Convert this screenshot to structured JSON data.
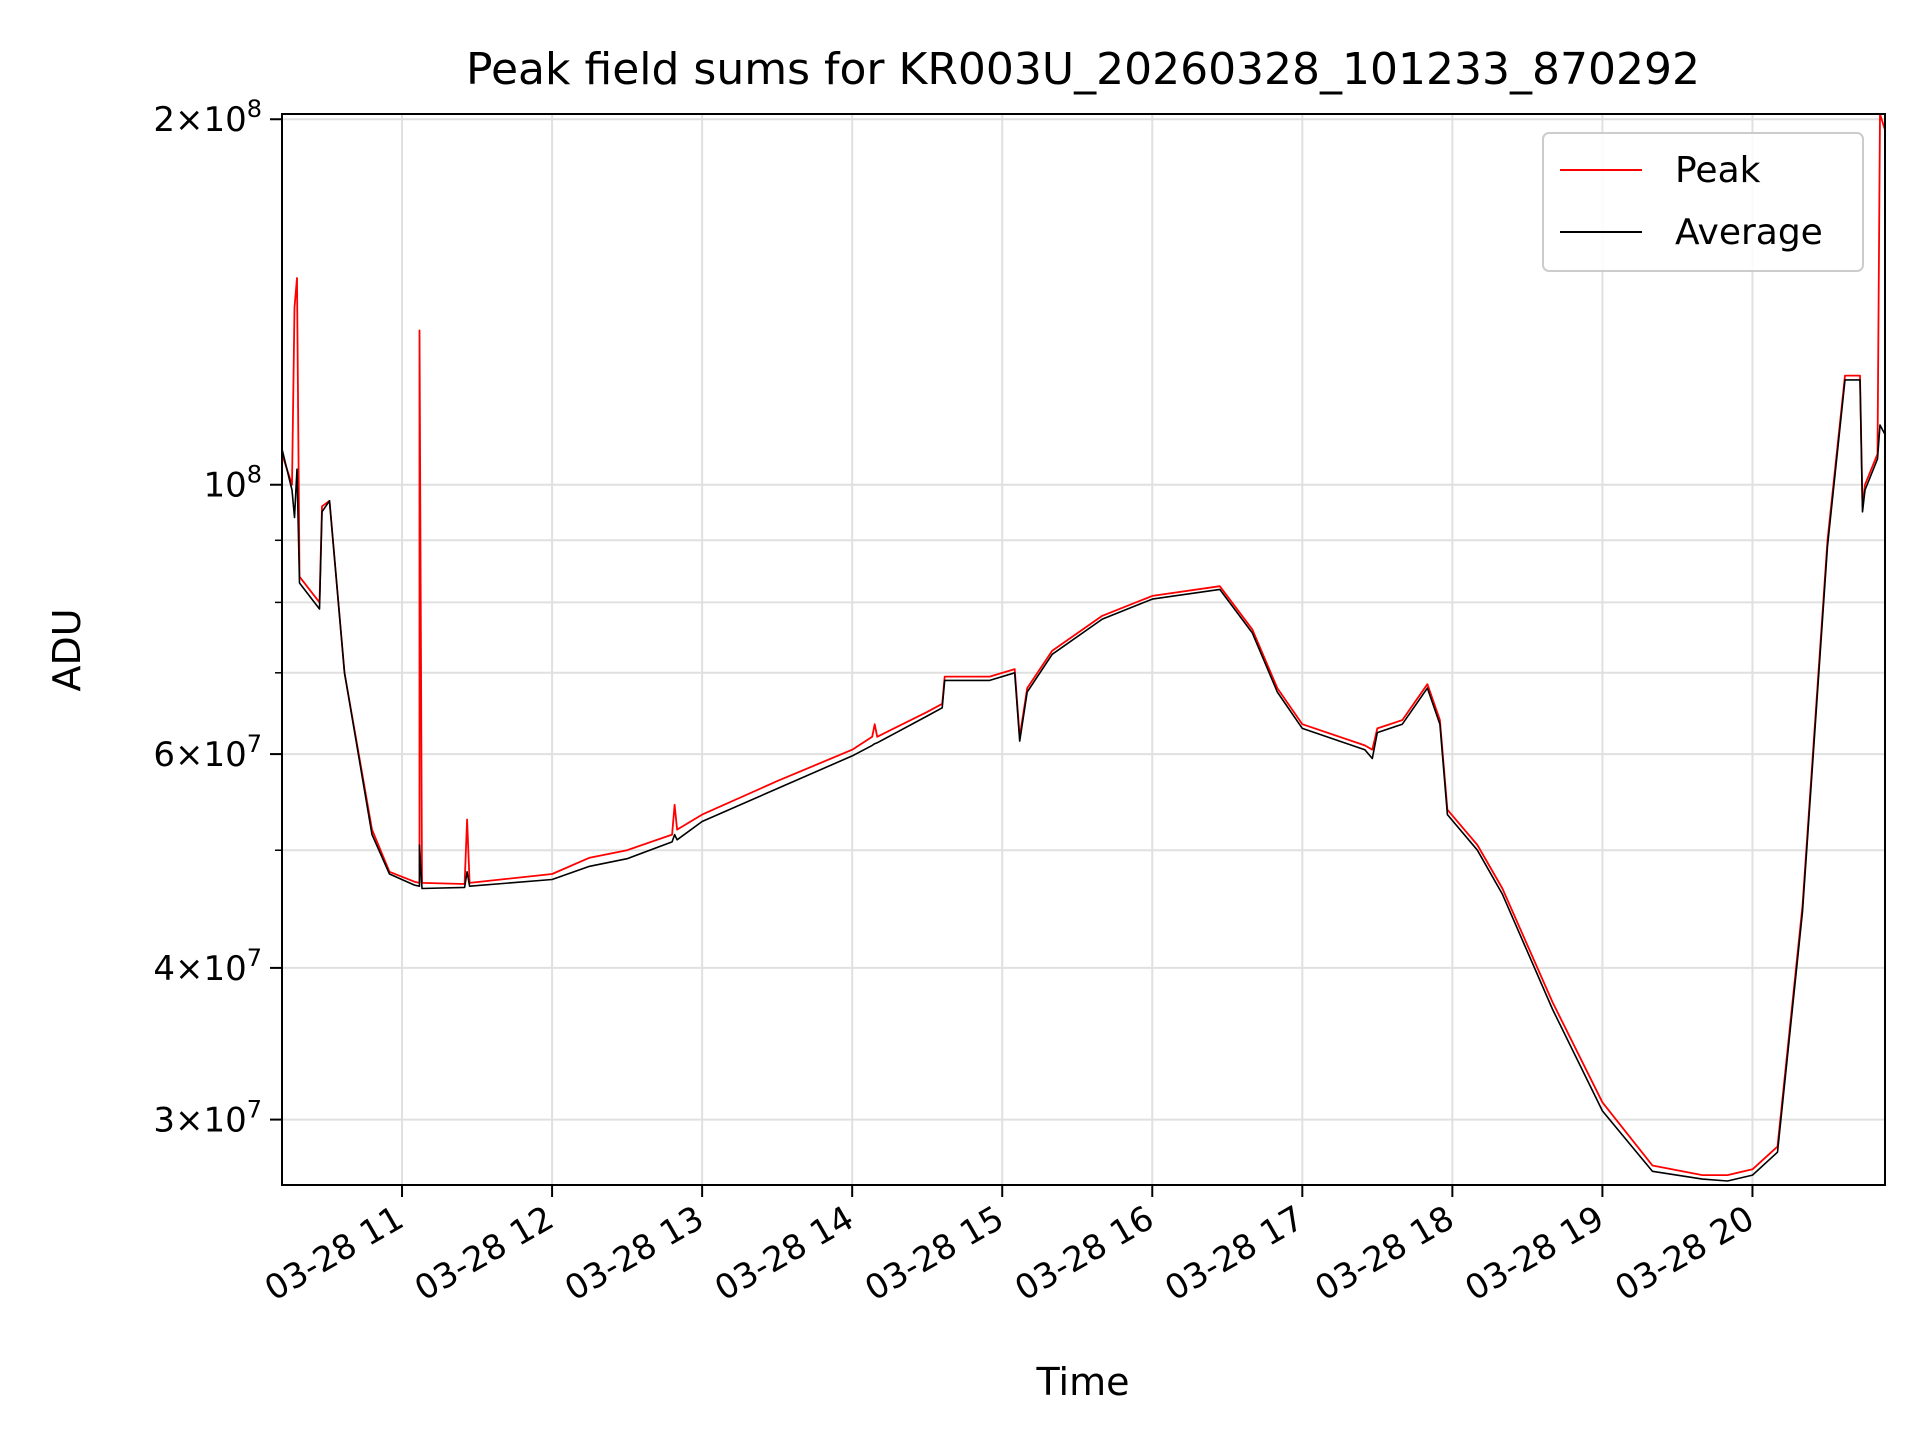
{
  "chart_data": {
    "type": "line",
    "title": "Peak field sums for KR003U_20260328_101233_870292",
    "xlabel": "Time",
    "ylabel": "ADU",
    "yscale": "log",
    "ylim": [
      26500000,
      202000000
    ],
    "xlim": [
      "2026-03-28 10:12",
      "2026-03-28 20:53"
    ],
    "grid": true,
    "legend": "top-right",
    "x_ticks": [
      {
        "t": "2026-03-28 11:00",
        "label": "03-28 11"
      },
      {
        "t": "2026-03-28 12:00",
        "label": "03-28 12"
      },
      {
        "t": "2026-03-28 13:00",
        "label": "03-28 13"
      },
      {
        "t": "2026-03-28 14:00",
        "label": "03-28 14"
      },
      {
        "t": "2026-03-28 15:00",
        "label": "03-28 15"
      },
      {
        "t": "2026-03-28 16:00",
        "label": "03-28 16"
      },
      {
        "t": "2026-03-28 17:00",
        "label": "03-28 17"
      },
      {
        "t": "2026-03-28 18:00",
        "label": "03-28 18"
      },
      {
        "t": "2026-03-28 19:00",
        "label": "03-28 19"
      },
      {
        "t": "2026-03-28 20:00",
        "label": "03-28 20"
      }
    ],
    "y_major_ticks": [
      {
        "value": 30000000,
        "coef": "3",
        "exp": "7"
      },
      {
        "value": 40000000,
        "coef": "4",
        "exp": "7"
      },
      {
        "value": 60000000,
        "coef": "6",
        "exp": "7"
      },
      {
        "value": 100000000,
        "coef": "",
        "exp": "8"
      },
      {
        "value": 200000000,
        "coef": "2",
        "exp": "8"
      }
    ],
    "y_minor_ticks": [
      50000000,
      70000000,
      80000000,
      90000000
    ],
    "series": [
      {
        "name": "Peak",
        "color": "#ff0000",
        "points": [
          [
            "2026-03-28 10:12",
            106000000
          ],
          [
            "2026-03-28 10:16",
            100000000
          ],
          [
            "2026-03-28 10:17",
            140000000
          ],
          [
            "2026-03-28 10:18",
            148000000
          ],
          [
            "2026-03-28 10:19",
            84000000
          ],
          [
            "2026-03-28 10:27",
            80000000
          ],
          [
            "2026-03-28 10:28",
            96000000
          ],
          [
            "2026-03-28 10:31",
            97000000
          ],
          [
            "2026-03-28 10:37",
            70000000
          ],
          [
            "2026-03-28 10:48",
            52000000
          ],
          [
            "2026-03-28 10:55",
            48000000
          ],
          [
            "2026-03-28 11:05",
            47100000
          ],
          [
            "2026-03-28 11:07",
            47000000
          ],
          [
            "2026-03-28 11:07",
            134000000
          ],
          [
            "2026-03-28 11:08",
            47000000
          ],
          [
            "2026-03-28 11:25",
            46900000
          ],
          [
            "2026-03-28 11:26",
            53000000
          ],
          [
            "2026-03-28 11:27",
            47000000
          ],
          [
            "2026-03-28 12:00",
            47800000
          ],
          [
            "2026-03-28 12:15",
            49300000
          ],
          [
            "2026-03-28 12:30",
            50000000
          ],
          [
            "2026-03-28 12:48",
            51500000
          ],
          [
            "2026-03-28 12:49",
            54500000
          ],
          [
            "2026-03-28 12:50",
            52000000
          ],
          [
            "2026-03-28 13:00",
            53500000
          ],
          [
            "2026-03-28 13:30",
            57000000
          ],
          [
            "2026-03-28 14:00",
            60500000
          ],
          [
            "2026-03-28 14:08",
            62000000
          ],
          [
            "2026-03-28 14:09",
            63500000
          ],
          [
            "2026-03-28 14:10",
            62000000
          ],
          [
            "2026-03-28 14:30",
            65000000
          ],
          [
            "2026-03-28 14:36",
            66000000
          ],
          [
            "2026-03-28 14:37",
            69500000
          ],
          [
            "2026-03-28 14:55",
            69500000
          ],
          [
            "2026-03-28 15:05",
            70500000
          ],
          [
            "2026-03-28 15:07",
            62000000
          ],
          [
            "2026-03-28 15:10",
            68000000
          ],
          [
            "2026-03-28 15:20",
            73000000
          ],
          [
            "2026-03-28 15:40",
            78000000
          ],
          [
            "2026-03-28 16:00",
            81000000
          ],
          [
            "2026-03-28 16:27",
            82500000
          ],
          [
            "2026-03-28 16:40",
            76000000
          ],
          [
            "2026-03-28 16:50",
            68000000
          ],
          [
            "2026-03-28 17:00",
            63500000
          ],
          [
            "2026-03-28 17:25",
            61000000
          ],
          [
            "2026-03-28 17:28",
            60500000
          ],
          [
            "2026-03-28 17:30",
            63000000
          ],
          [
            "2026-03-28 17:40",
            64000000
          ],
          [
            "2026-03-28 17:50",
            68500000
          ],
          [
            "2026-03-28 17:55",
            64000000
          ],
          [
            "2026-03-28 17:58",
            54000000
          ],
          [
            "2026-03-28 18:10",
            50500000
          ],
          [
            "2026-03-28 18:20",
            46500000
          ],
          [
            "2026-03-28 18:40",
            37500000
          ],
          [
            "2026-03-28 19:00",
            31000000
          ],
          [
            "2026-03-28 19:20",
            27500000
          ],
          [
            "2026-03-28 19:40",
            27000000
          ],
          [
            "2026-03-28 19:50",
            27000000
          ],
          [
            "2026-03-28 20:00",
            27300000
          ],
          [
            "2026-03-28 20:10",
            28500000
          ],
          [
            "2026-03-28 20:20",
            45000000
          ],
          [
            "2026-03-28 20:30",
            90000000
          ],
          [
            "2026-03-28 20:37",
            123000000
          ],
          [
            "2026-03-28 20:43",
            123000000
          ],
          [
            "2026-03-28 20:44",
            96000000
          ],
          [
            "2026-03-28 20:45",
            100000000
          ],
          [
            "2026-03-28 20:50",
            106000000
          ],
          [
            "2026-03-28 20:51",
            202000000
          ],
          [
            "2026-03-28 20:53",
            196000000
          ]
        ]
      },
      {
        "name": "Average",
        "color": "#000000",
        "points": [
          [
            "2026-03-28 10:12",
            107000000
          ],
          [
            "2026-03-28 10:16",
            99000000
          ],
          [
            "2026-03-28 10:17",
            94000000
          ],
          [
            "2026-03-28 10:18",
            103000000
          ],
          [
            "2026-03-28 10:19",
            83000000
          ],
          [
            "2026-03-28 10:27",
            79000000
          ],
          [
            "2026-03-28 10:28",
            95000000
          ],
          [
            "2026-03-28 10:31",
            97000000
          ],
          [
            "2026-03-28 10:37",
            70000000
          ],
          [
            "2026-03-28 10:48",
            51500000
          ],
          [
            "2026-03-28 10:55",
            47800000
          ],
          [
            "2026-03-28 11:05",
            46800000
          ],
          [
            "2026-03-28 11:07",
            46700000
          ],
          [
            "2026-03-28 11:07",
            50500000
          ],
          [
            "2026-03-28 11:08",
            46500000
          ],
          [
            "2026-03-28 11:25",
            46600000
          ],
          [
            "2026-03-28 11:26",
            48000000
          ],
          [
            "2026-03-28 11:27",
            46700000
          ],
          [
            "2026-03-28 12:00",
            47300000
          ],
          [
            "2026-03-28 12:15",
            48500000
          ],
          [
            "2026-03-28 12:30",
            49200000
          ],
          [
            "2026-03-28 12:48",
            50800000
          ],
          [
            "2026-03-28 12:49",
            51500000
          ],
          [
            "2026-03-28 12:50",
            51000000
          ],
          [
            "2026-03-28 13:00",
            52800000
          ],
          [
            "2026-03-28 13:30",
            56200000
          ],
          [
            "2026-03-28 14:00",
            59800000
          ],
          [
            "2026-03-28 14:08",
            61000000
          ],
          [
            "2026-03-28 14:09",
            61200000
          ],
          [
            "2026-03-28 14:10",
            61300000
          ],
          [
            "2026-03-28 14:30",
            64500000
          ],
          [
            "2026-03-28 14:36",
            65500000
          ],
          [
            "2026-03-28 14:37",
            69000000
          ],
          [
            "2026-03-28 14:55",
            69000000
          ],
          [
            "2026-03-28 15:05",
            70000000
          ],
          [
            "2026-03-28 15:07",
            61500000
          ],
          [
            "2026-03-28 15:10",
            67500000
          ],
          [
            "2026-03-28 15:20",
            72500000
          ],
          [
            "2026-03-28 15:40",
            77500000
          ],
          [
            "2026-03-28 16:00",
            80500000
          ],
          [
            "2026-03-28 16:27",
            82000000
          ],
          [
            "2026-03-28 16:40",
            75500000
          ],
          [
            "2026-03-28 16:50",
            67500000
          ],
          [
            "2026-03-28 17:00",
            63000000
          ],
          [
            "2026-03-28 17:25",
            60500000
          ],
          [
            "2026-03-28 17:28",
            59500000
          ],
          [
            "2026-03-28 17:30",
            62500000
          ],
          [
            "2026-03-28 17:40",
            63500000
          ],
          [
            "2026-03-28 17:50",
            68000000
          ],
          [
            "2026-03-28 17:55",
            63500000
          ],
          [
            "2026-03-28 17:58",
            53500000
          ],
          [
            "2026-03-28 18:10",
            50000000
          ],
          [
            "2026-03-28 18:20",
            46000000
          ],
          [
            "2026-03-28 18:40",
            37000000
          ],
          [
            "2026-03-28 19:00",
            30500000
          ],
          [
            "2026-03-28 19:20",
            27200000
          ],
          [
            "2026-03-28 19:40",
            26800000
          ],
          [
            "2026-03-28 19:50",
            26700000
          ],
          [
            "2026-03-28 20:00",
            27000000
          ],
          [
            "2026-03-28 20:10",
            28200000
          ],
          [
            "2026-03-28 20:20",
            44500000
          ],
          [
            "2026-03-28 20:30",
            89000000
          ],
          [
            "2026-03-28 20:37",
            122000000
          ],
          [
            "2026-03-28 20:43",
            122000000
          ],
          [
            "2026-03-28 20:44",
            95000000
          ],
          [
            "2026-03-28 20:45",
            99000000
          ],
          [
            "2026-03-28 20:50",
            105000000
          ],
          [
            "2026-03-28 20:51",
            112000000
          ],
          [
            "2026-03-28 20:53",
            110000000
          ]
        ]
      }
    ]
  }
}
